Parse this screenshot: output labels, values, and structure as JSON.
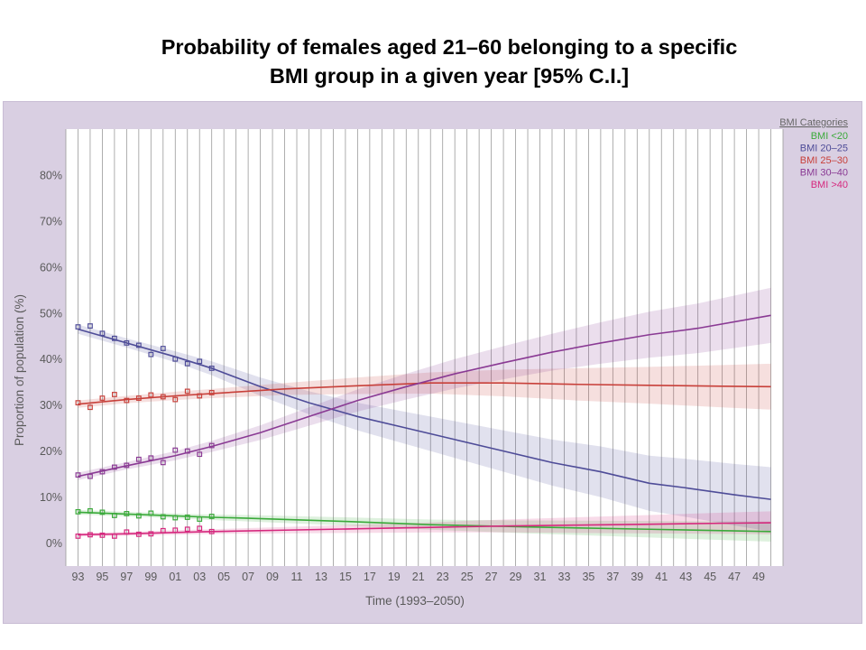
{
  "title_line1": "Probability of females aged 21–60 belonging to a specific",
  "title_line2": "BMI group in a given year [95% C.I.]",
  "chart_data": {
    "type": "line",
    "title": "Probability of females aged 21–60 belonging to a specific BMI group in a given year [95% C.I.]",
    "xlabel": "Time (1993–2050)",
    "ylabel": "Proportion of population (%)",
    "xlim": [
      1992,
      2051
    ],
    "ylim": [
      -5,
      90
    ],
    "y_ticks": [
      0,
      10,
      20,
      30,
      40,
      50,
      60,
      70,
      80
    ],
    "y_tick_labels": [
      "0%",
      "10%",
      "20%",
      "30%",
      "40%",
      "50%",
      "60%",
      "70%",
      "80%"
    ],
    "x_ticks": [
      1993,
      1995,
      1997,
      1999,
      2001,
      2003,
      2005,
      2007,
      2009,
      2011,
      2013,
      2015,
      2017,
      2019,
      2021,
      2023,
      2025,
      2027,
      2029,
      2031,
      2033,
      2035,
      2037,
      2039,
      2041,
      2043,
      2045,
      2047,
      2049
    ],
    "x_tick_labels": [
      "93",
      "95",
      "97",
      "99",
      "01",
      "03",
      "05",
      "07",
      "09",
      "11",
      "13",
      "15",
      "17",
      "19",
      "21",
      "23",
      "25",
      "27",
      "29",
      "31",
      "33",
      "35",
      "37",
      "39",
      "41",
      "43",
      "45",
      "47",
      "49"
    ],
    "grid": true,
    "legend_placement": "top-right",
    "legend_title": "BMI Categories",
    "series": [
      {
        "name": "BMI <20",
        "color": "#3aaa3a",
        "x": [
          1993,
          2000,
          2004,
          2007,
          2015,
          2022,
          2030,
          2040,
          2050
        ],
        "y": [
          6.7,
          6.0,
          5.6,
          5.4,
          4.7,
          4.0,
          3.5,
          3.0,
          2.5
        ],
        "ci_half": [
          0.5,
          0.5,
          0.6,
          0.7,
          0.9,
          1.1,
          1.4,
          1.8,
          2.2
        ],
        "observed_x": [
          1993,
          1994,
          1995,
          1996,
          1997,
          1998,
          1999,
          2000,
          2001,
          2002,
          2003,
          2004
        ],
        "observed_y": [
          6.8,
          7.0,
          6.7,
          6.0,
          6.4,
          5.9,
          6.5,
          5.7,
          5.5,
          5.6,
          5.2,
          5.8
        ]
      },
      {
        "name": "BMI 20–25",
        "color": "#4e4c98",
        "x": [
          1993,
          1997,
          2001,
          2004,
          2008,
          2012,
          2016,
          2020,
          2024,
          2028,
          2032,
          2036,
          2040,
          2043,
          2047,
          2050
        ],
        "y": [
          46.5,
          43.5,
          40.5,
          38.0,
          34.0,
          30.5,
          27.5,
          25.0,
          22.5,
          20.0,
          17.5,
          15.5,
          13.0,
          12.0,
          10.5,
          9.5
        ],
        "ci_half": [
          1.0,
          1.0,
          1.2,
          1.5,
          2.0,
          2.5,
          3.0,
          3.5,
          4.0,
          4.5,
          5.0,
          5.5,
          6.0,
          6.3,
          6.7,
          7.0
        ],
        "observed_x": [
          1993,
          1994,
          1995,
          1996,
          1997,
          1998,
          1999,
          2000,
          2001,
          2002,
          2003,
          2004
        ],
        "observed_y": [
          47.0,
          47.2,
          45.6,
          44.5,
          43.5,
          43.0,
          41.0,
          42.3,
          40.0,
          39.0,
          39.5,
          38.0
        ]
      },
      {
        "name": "BMI 25–30",
        "color": "#c8403a",
        "x": [
          1993,
          1997,
          2001,
          2004,
          2010,
          2016,
          2022,
          2028,
          2034,
          2040,
          2046,
          2050
        ],
        "y": [
          30.2,
          31.2,
          32.0,
          32.5,
          33.5,
          34.2,
          34.8,
          34.8,
          34.5,
          34.3,
          34.1,
          34.0
        ],
        "ci_half": [
          0.8,
          0.8,
          0.9,
          1.0,
          1.3,
          1.8,
          2.3,
          2.9,
          3.5,
          4.0,
          4.6,
          5.0
        ],
        "observed_x": [
          1993,
          1994,
          1995,
          1996,
          1997,
          1998,
          1999,
          2000,
          2001,
          2002,
          2003,
          2004
        ],
        "observed_y": [
          30.5,
          29.5,
          31.5,
          32.3,
          31.0,
          31.5,
          32.2,
          31.8,
          31.2,
          33.0,
          32.0,
          32.7
        ]
      },
      {
        "name": "BMI 30–40",
        "color": "#8a3a94",
        "x": [
          1993,
          1997,
          2001,
          2004,
          2008,
          2012,
          2016,
          2020,
          2024,
          2028,
          2032,
          2036,
          2040,
          2044,
          2050
        ],
        "y": [
          14.5,
          16.8,
          19.0,
          21.0,
          24.0,
          27.5,
          31.0,
          34.0,
          36.8,
          39.2,
          41.5,
          43.5,
          45.3,
          46.7,
          49.5
        ],
        "ci_half": [
          0.8,
          0.8,
          1.0,
          1.2,
          1.6,
          2.0,
          2.4,
          2.8,
          3.2,
          3.6,
          4.0,
          4.5,
          5.0,
          5.4,
          6.0
        ],
        "observed_x": [
          1993,
          1994,
          1995,
          1996,
          1997,
          1998,
          1999,
          2000,
          2001,
          2002,
          2003,
          2004
        ],
        "observed_y": [
          14.8,
          14.5,
          15.5,
          16.5,
          16.9,
          18.2,
          18.5,
          17.5,
          20.2,
          20.0,
          19.3,
          21.2
        ]
      },
      {
        "name": "BMI >40",
        "color": "#d6287e",
        "x": [
          1993,
          1997,
          2001,
          2004,
          2010,
          2016,
          2022,
          2028,
          2034,
          2040,
          2046,
          2050
        ],
        "y": [
          1.8,
          2.0,
          2.3,
          2.5,
          2.8,
          3.1,
          3.4,
          3.7,
          3.9,
          4.1,
          4.3,
          4.4
        ],
        "ci_half": [
          0.4,
          0.4,
          0.5,
          0.5,
          0.7,
          0.9,
          1.1,
          1.4,
          1.7,
          2.0,
          2.3,
          2.5
        ],
        "observed_x": [
          1993,
          1994,
          1995,
          1996,
          1997,
          1998,
          1999,
          2000,
          2001,
          2002,
          2003,
          2004
        ],
        "observed_y": [
          1.5,
          1.8,
          1.7,
          1.5,
          2.4,
          1.9,
          2.0,
          2.7,
          2.8,
          3.0,
          3.2,
          2.5
        ]
      }
    ]
  }
}
